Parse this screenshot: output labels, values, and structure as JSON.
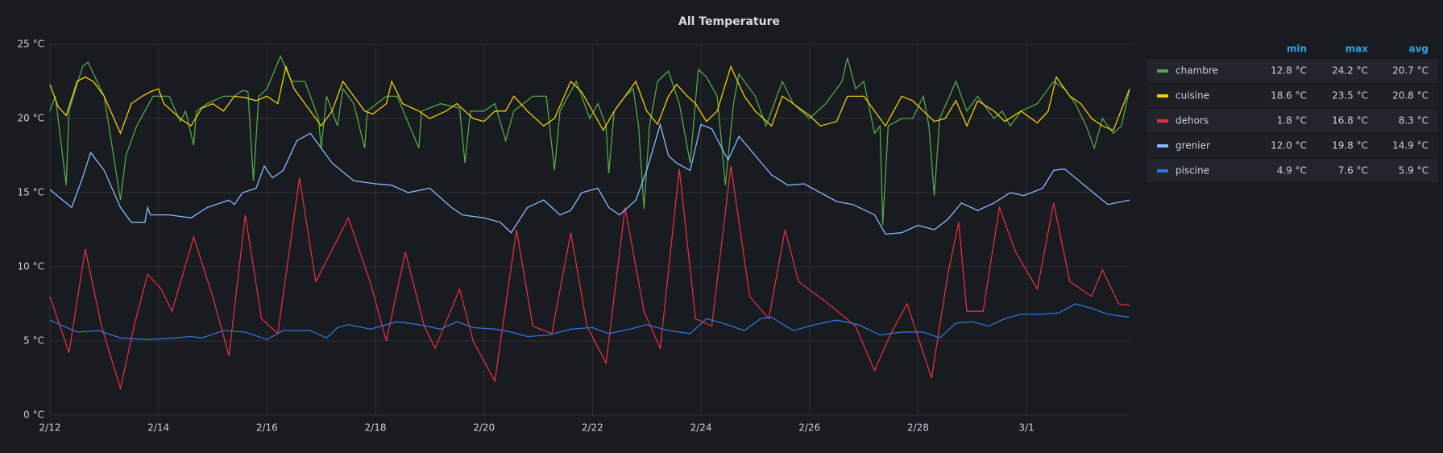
{
  "chart_data": {
    "type": "line",
    "title": "All Temperature",
    "xlim": [
      0,
      19.9
    ],
    "xticks": [
      {
        "value": 0,
        "label": "2/12"
      },
      {
        "value": 2,
        "label": "2/14"
      },
      {
        "value": 4,
        "label": "2/16"
      },
      {
        "value": 6,
        "label": "2/18"
      },
      {
        "value": 8,
        "label": "2/20"
      },
      {
        "value": 10,
        "label": "2/22"
      },
      {
        "value": 12,
        "label": "2/24"
      },
      {
        "value": 14,
        "label": "2/26"
      },
      {
        "value": 16,
        "label": "2/28"
      },
      {
        "value": 18,
        "label": "3/1"
      }
    ],
    "ylim": [
      0,
      25
    ],
    "yticks": [
      {
        "value": 0,
        "label": "0 °C"
      },
      {
        "value": 5,
        "label": "5 °C"
      },
      {
        "value": 10,
        "label": "10 °C"
      },
      {
        "value": 15,
        "label": "15 °C"
      },
      {
        "value": 20,
        "label": "20 °C"
      },
      {
        "value": 25,
        "label": "25 °C"
      }
    ],
    "grid": true,
    "legend_columns": [
      "min",
      "max",
      "avg"
    ],
    "series": [
      {
        "name": "chambre",
        "color": "#56a64b",
        "stats": [
          "12.8 °C",
          "24.2 °C",
          "20.7 °C"
        ],
        "x": [
          0,
          0.1,
          0.3,
          0.35,
          0.6,
          0.7,
          1.0,
          1.3,
          1.4,
          1.6,
          1.9,
          2.2,
          2.4,
          2.5,
          2.65,
          2.7,
          2.9,
          3.2,
          3.4,
          3.55,
          3.65,
          3.75,
          3.85,
          4.0,
          4.25,
          4.45,
          4.7,
          4.95,
          5.0,
          5.1,
          5.3,
          5.4,
          5.6,
          5.8,
          5.85,
          6.2,
          6.4,
          6.8,
          6.85,
          7.2,
          7.55,
          7.65,
          7.75,
          8.0,
          8.2,
          8.4,
          8.55,
          8.9,
          9.15,
          9.3,
          9.4,
          9.7,
          9.95,
          10.1,
          10.25,
          10.3,
          10.4,
          10.6,
          10.75,
          10.85,
          10.95,
          11.05,
          11.2,
          11.4,
          11.6,
          11.8,
          11.95,
          12.1,
          12.3,
          12.45,
          12.6,
          12.7,
          12.8,
          13.0,
          13.2,
          13.5,
          13.7,
          14.0,
          14.3,
          14.6,
          14.7,
          14.85,
          15.0,
          15.2,
          15.3,
          15.35,
          15.45,
          15.7,
          15.9,
          16.1,
          16.2,
          16.3,
          16.4,
          16.7,
          16.9,
          17.1,
          17.4,
          17.55,
          17.7,
          17.9,
          18.2,
          18.5,
          18.7,
          18.9,
          19.1,
          19.25,
          19.4,
          19.6,
          19.75,
          19.9
        ],
        "values": [
          20.5,
          21.5,
          15.5,
          20.5,
          23.5,
          23.8,
          21.5,
          14.5,
          17.5,
          19.5,
          21.5,
          21.5,
          19.8,
          20.5,
          18.2,
          20.5,
          21,
          21.5,
          21.5,
          21.9,
          21.8,
          15.8,
          21.5,
          22,
          24.2,
          22.5,
          22.5,
          20,
          18,
          21.5,
          19.5,
          22,
          21,
          18,
          20.5,
          21.5,
          21.5,
          18,
          20.5,
          21,
          20.7,
          17,
          20.5,
          20.5,
          21,
          18.5,
          20.5,
          21.5,
          21.5,
          16.5,
          20.5,
          22.5,
          20,
          21,
          19.5,
          16.3,
          20.5,
          21.5,
          22,
          19.5,
          13.9,
          19.5,
          22.5,
          23.2,
          21,
          17,
          23.3,
          22.8,
          21.5,
          15.5,
          21,
          23,
          22.5,
          21.5,
          19.5,
          22.5,
          21,
          20,
          21,
          22.5,
          24.1,
          22,
          22.5,
          19,
          19.5,
          12.8,
          19.5,
          20,
          20,
          21.5,
          19.5,
          14.8,
          20,
          22.5,
          20.5,
          21.5,
          20,
          20.5,
          19.5,
          20.5,
          21,
          22.5,
          22,
          21,
          19.5,
          18,
          20,
          19,
          19.5,
          22
        ]
      },
      {
        "name": "cuisine",
        "color": "#f2cc0c",
        "stats": [
          "18.6 °C",
          "23.5 °C",
          "20.8 °C"
        ],
        "x": [
          0,
          0.15,
          0.3,
          0.5,
          0.65,
          0.8,
          1.0,
          1.3,
          1.5,
          1.7,
          1.85,
          2.0,
          2.1,
          2.4,
          2.6,
          2.8,
          3.0,
          3.2,
          3.4,
          3.6,
          3.8,
          4.0,
          4.2,
          4.35,
          4.5,
          4.8,
          5.0,
          5.2,
          5.4,
          5.6,
          5.8,
          5.95,
          6.2,
          6.3,
          6.5,
          6.8,
          7.0,
          7.3,
          7.5,
          7.8,
          8.0,
          8.2,
          8.4,
          8.55,
          8.8,
          9.1,
          9.3,
          9.6,
          9.8,
          10.0,
          10.2,
          10.4,
          10.6,
          10.8,
          11.0,
          11.2,
          11.4,
          11.55,
          11.75,
          11.9,
          12.1,
          12.3,
          12.55,
          12.8,
          13.0,
          13.3,
          13.5,
          13.7,
          14.0,
          14.2,
          14.5,
          14.7,
          15.0,
          15.2,
          15.4,
          15.7,
          15.9,
          16.1,
          16.3,
          16.5,
          16.7,
          16.9,
          17.1,
          17.4,
          17.6,
          17.9,
          18.2,
          18.4,
          18.55,
          18.8,
          19.0,
          19.2,
          19.4,
          19.6,
          19.9
        ],
        "values": [
          22.3,
          20.8,
          20.2,
          22.5,
          22.8,
          22.5,
          21.5,
          19,
          21,
          21.5,
          21.8,
          22,
          21,
          20,
          19.5,
          20.7,
          21,
          20.5,
          21.5,
          21.4,
          21.2,
          21.5,
          21,
          23.5,
          22,
          20.5,
          19.5,
          20.5,
          22.5,
          21.5,
          20.5,
          20.3,
          21,
          22.5,
          21,
          20.5,
          20,
          20.5,
          21,
          20,
          19.8,
          20.5,
          20.5,
          21.5,
          20.5,
          19.5,
          20,
          22.5,
          21.8,
          20.5,
          19.2,
          20.5,
          21.5,
          22.5,
          20.5,
          19.6,
          21.5,
          22.3,
          21.5,
          21,
          19.8,
          20.5,
          23.5,
          21.5,
          20.5,
          19.5,
          21.5,
          21,
          20.2,
          19.5,
          19.8,
          21.5,
          21.5,
          20.5,
          19.5,
          21.5,
          21.2,
          20.5,
          19.8,
          20,
          21.2,
          19.5,
          21.2,
          20.5,
          19.8,
          20.5,
          19.7,
          20.5,
          22.8,
          21.5,
          21,
          20,
          19.5,
          19.2,
          22
        ]
      },
      {
        "name": "dehors",
        "color": "#e02f44",
        "stats": [
          "1.8 °C",
          "16.8 °C",
          "8.3 °C"
        ],
        "x": [
          0,
          0.35,
          0.65,
          0.95,
          1.3,
          1.55,
          1.8,
          2.05,
          2.25,
          2.65,
          3.0,
          3.3,
          3.6,
          3.9,
          4.2,
          4.6,
          4.9,
          5.5,
          5.9,
          6.2,
          6.55,
          6.9,
          7.1,
          7.55,
          7.8,
          8.2,
          8.6,
          8.9,
          9.25,
          9.6,
          9.9,
          10.25,
          10.6,
          10.95,
          11.25,
          11.6,
          11.9,
          12.2,
          12.55,
          12.9,
          13.25,
          13.55,
          13.8,
          14.35,
          14.85,
          15.2,
          15.5,
          15.8,
          16.25,
          16.55,
          16.75,
          16.9,
          17.2,
          17.5,
          17.8,
          18.2,
          18.5,
          18.8,
          19.2,
          19.4,
          19.7,
          19.9
        ],
        "values": [
          8,
          4.2,
          11.2,
          6,
          1.8,
          6,
          9.5,
          8.5,
          7,
          12,
          8,
          4,
          13.5,
          6.5,
          5.5,
          16,
          9,
          13.3,
          9,
          5,
          11,
          6,
          4.5,
          8.5,
          5,
          2.3,
          12.5,
          6,
          5.5,
          12.3,
          6,
          3.5,
          14,
          7,
          4.5,
          16.6,
          6.5,
          6,
          16.8,
          8,
          6.5,
          12.5,
          9,
          7.5,
          6,
          3,
          5.5,
          7.5,
          2.5,
          9.5,
          13,
          7,
          7,
          14,
          11,
          8.5,
          14.3,
          9,
          8,
          9.8,
          7.5,
          7.4
        ]
      },
      {
        "name": "grenier",
        "color": "#8ab8ff",
        "stats": [
          "12.0 °C",
          "19.8 °C",
          "14.9 °C"
        ],
        "x": [
          0,
          0.4,
          0.6,
          0.75,
          1.0,
          1.3,
          1.5,
          1.75,
          1.8,
          1.85,
          2.2,
          2.6,
          2.9,
          3.3,
          3.4,
          3.55,
          3.8,
          3.95,
          4.1,
          4.3,
          4.55,
          4.8,
          5.2,
          5.6,
          6.0,
          6.3,
          6.6,
          7.0,
          7.4,
          7.6,
          8.0,
          8.3,
          8.5,
          8.8,
          9.1,
          9.4,
          9.6,
          9.8,
          10.1,
          10.3,
          10.5,
          10.8,
          11.0,
          11.25,
          11.4,
          11.55,
          11.8,
          12.0,
          12.2,
          12.5,
          12.7,
          13.0,
          13.3,
          13.6,
          13.9,
          14.2,
          14.5,
          14.8,
          15.2,
          15.4,
          15.7,
          16.0,
          16.3,
          16.55,
          16.8,
          17.1,
          17.4,
          17.7,
          17.95,
          18.3,
          18.5,
          18.7,
          18.9,
          19.3,
          19.5,
          19.9
        ],
        "values": [
          15.2,
          14,
          16,
          17.7,
          16.5,
          14,
          13,
          13,
          14,
          13.5,
          13.5,
          13.3,
          14,
          14.5,
          14.2,
          15,
          15.3,
          16.8,
          16,
          16.5,
          18.5,
          19,
          17,
          15.8,
          15.6,
          15.5,
          15,
          15.3,
          14,
          13.5,
          13.3,
          13,
          12.3,
          14,
          14.5,
          13.5,
          13.8,
          15,
          15.3,
          14,
          13.5,
          14.5,
          16.5,
          19.6,
          17.5,
          17,
          16.5,
          19.6,
          19.3,
          17.2,
          18.8,
          17.5,
          16.2,
          15.5,
          15.6,
          15,
          14.4,
          14.2,
          13.5,
          12.2,
          12.3,
          12.8,
          12.5,
          13.2,
          14.3,
          13.8,
          14.3,
          15,
          14.8,
          15.3,
          16.5,
          16.6,
          16,
          14.8,
          14.2,
          14.5
        ]
      },
      {
        "name": "piscine",
        "color": "#3274d9",
        "stats": [
          "4.9 °C",
          "7.6 °C",
          "5.9 °C"
        ],
        "x": [
          0,
          0.5,
          0.9,
          1.3,
          1.8,
          2.3,
          2.6,
          2.8,
          3.2,
          3.6,
          4.0,
          4.3,
          4.8,
          5.1,
          5.3,
          5.5,
          5.9,
          6.4,
          6.8,
          7.2,
          7.5,
          7.8,
          8.2,
          8.5,
          8.8,
          9.2,
          9.6,
          10.0,
          10.3,
          10.7,
          11.0,
          11.4,
          11.8,
          12.1,
          12.4,
          12.8,
          13.1,
          13.3,
          13.7,
          14.1,
          14.5,
          14.9,
          15.3,
          15.7,
          16.1,
          16.4,
          16.7,
          17.0,
          17.3,
          17.6,
          17.9,
          18.3,
          18.6,
          18.9,
          19.2,
          19.5,
          19.9
        ],
        "values": [
          6.4,
          5.6,
          5.7,
          5.2,
          5.1,
          5.2,
          5.3,
          5.2,
          5.7,
          5.6,
          5.1,
          5.7,
          5.7,
          5.2,
          5.9,
          6.1,
          5.8,
          6.3,
          6.1,
          5.8,
          6.3,
          5.9,
          5.8,
          5.6,
          5.3,
          5.4,
          5.8,
          5.9,
          5.5,
          5.8,
          6.1,
          5.7,
          5.5,
          6.5,
          6.2,
          5.7,
          6.5,
          6.6,
          5.7,
          6.1,
          6.4,
          6.1,
          5.4,
          5.6,
          5.6,
          5.2,
          6.2,
          6.3,
          6,
          6.5,
          6.8,
          6.8,
          6.9,
          7.5,
          7.2,
          6.8,
          6.6
        ]
      }
    ]
  }
}
